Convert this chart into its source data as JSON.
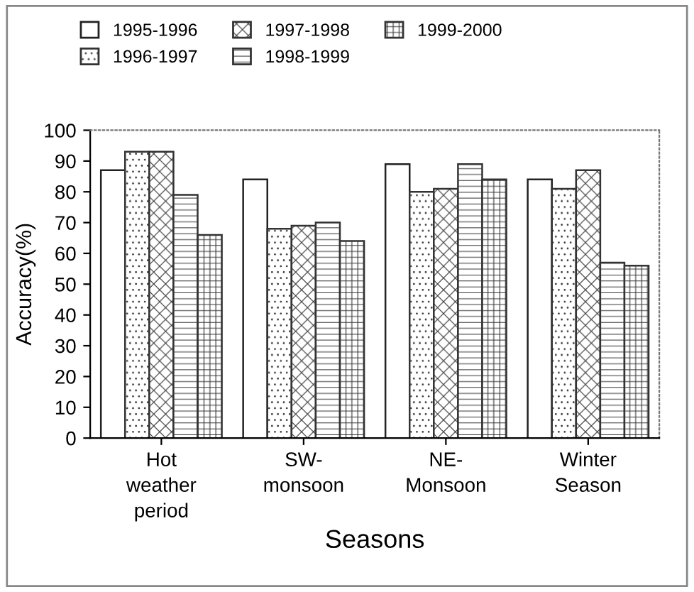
{
  "chart_data": {
    "type": "bar",
    "xlabel": "Seasons",
    "ylabel": "Accuracy(%)",
    "categories": [
      "Hot\nweather\nperiod",
      "SW-\nmonsoon",
      "NE-\nMonsoon",
      "Winter\nSeason"
    ],
    "series": [
      {
        "name": "1995-1996",
        "color": "#ffffff",
        "values": [
          87,
          84,
          89,
          84
        ]
      },
      {
        "name": "1996-1997",
        "color": "#333333",
        "values": [
          93,
          68,
          80,
          81
        ]
      },
      {
        "name": "1997-1998",
        "color": "#333333",
        "values": [
          93,
          69,
          81,
          87
        ]
      },
      {
        "name": "1998-1999",
        "color": "#333333",
        "values": [
          79,
          70,
          89,
          57
        ]
      },
      {
        "name": "1999-2000",
        "color": "#333333",
        "values": [
          66,
          64,
          84,
          56
        ]
      }
    ],
    "ylim": [
      0,
      100
    ],
    "yticks": [
      0,
      10,
      20,
      30,
      40,
      50,
      60,
      70,
      80,
      90,
      100
    ],
    "grid": false,
    "legend": "top"
  }
}
